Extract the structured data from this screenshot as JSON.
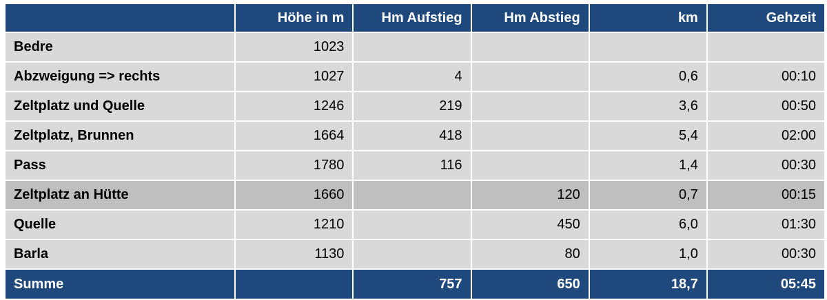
{
  "columns": [
    "",
    "Höhe in m",
    "Hm Aufstieg",
    "Hm Abstieg",
    "km",
    "Gehzeit"
  ],
  "rows": [
    [
      "Bedre",
      "1023",
      "",
      "",
      "",
      ""
    ],
    [
      "Abzweigung => rechts",
      "1027",
      "4",
      "",
      "0,6",
      "00:10"
    ],
    [
      "Zeltplatz und Quelle",
      "1246",
      "219",
      "",
      "3,6",
      "00:50"
    ],
    [
      "Zeltplatz, Brunnen",
      "1664",
      "418",
      "",
      "5,4",
      "02:00"
    ],
    [
      "Pass",
      "1780",
      "116",
      "",
      "1,4",
      "00:30"
    ],
    [
      "Zeltplatz an Hütte",
      "1660",
      "",
      "120",
      "0,7",
      "00:15"
    ],
    [
      "Quelle",
      "1210",
      "",
      "450",
      "6,0",
      "01:30"
    ],
    [
      "Barla",
      "1130",
      "",
      "80",
      "1,0",
      "00:30"
    ]
  ],
  "total": [
    "Summe",
    "",
    "757",
    "650",
    "18,7",
    "05:45"
  ],
  "highlighted_row": 5,
  "colors": {
    "header_bg": "#1f497d",
    "header_text": "#ffffff",
    "cell_bg": "#d9d9d9",
    "highlight_bg": "#bfbfbf"
  }
}
